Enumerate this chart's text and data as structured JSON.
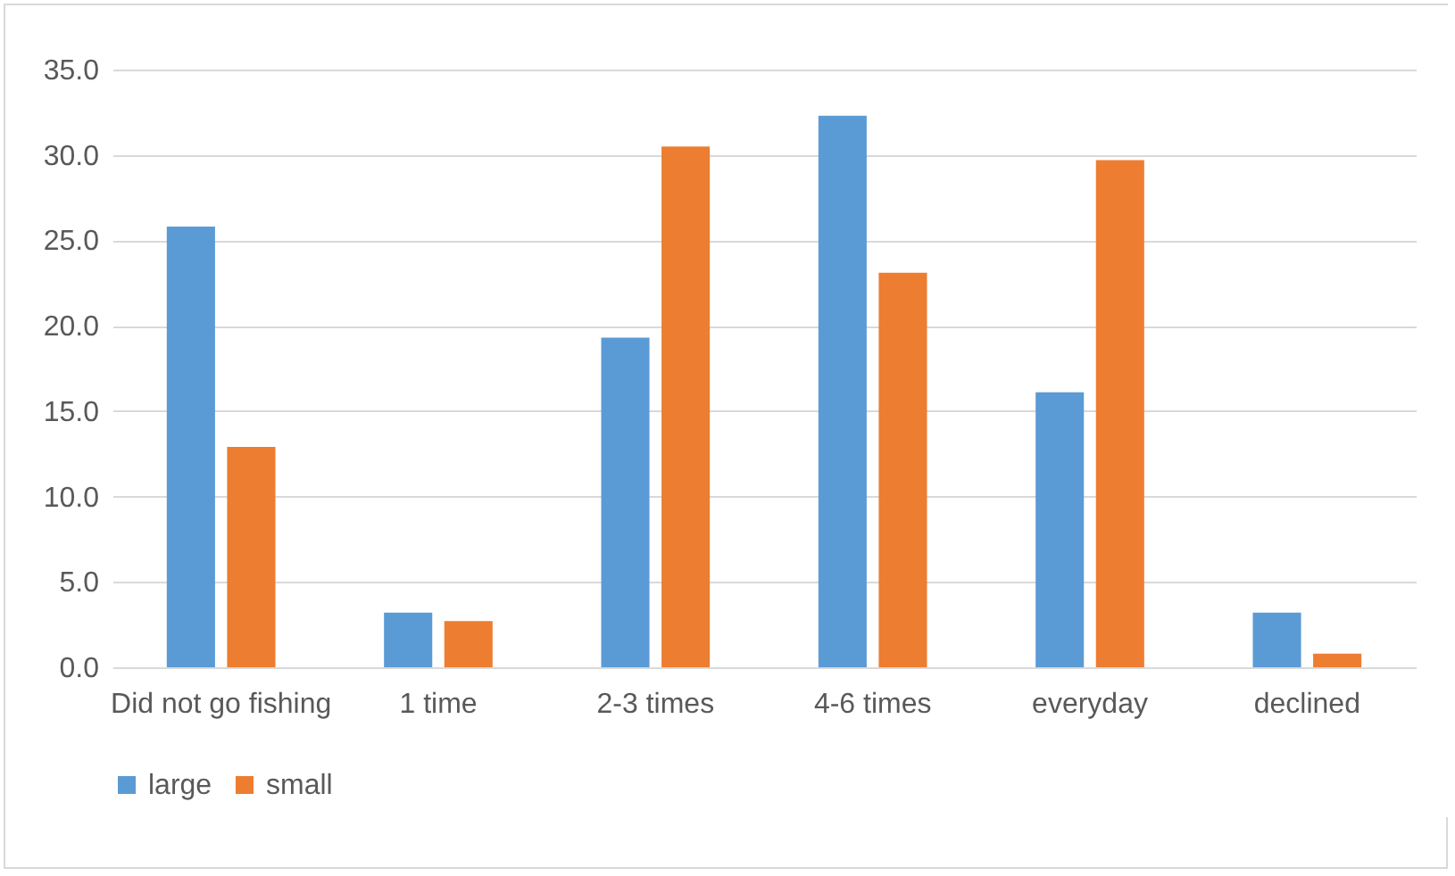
{
  "chart_data": {
    "type": "bar",
    "categories": [
      "Did not go fishing",
      "1 time",
      "2-3 times",
      "4-6 times",
      "everyday",
      "declined"
    ],
    "series": [
      {
        "name": "large",
        "color": "#5b9bd5",
        "values": [
          25.8,
          3.2,
          19.3,
          32.3,
          16.1,
          3.2
        ]
      },
      {
        "name": "small",
        "color": "#ed7d31",
        "values": [
          12.9,
          2.7,
          30.5,
          23.1,
          29.7,
          0.8
        ]
      }
    ],
    "ylim": [
      0,
      35
    ],
    "yticks": [
      {
        "value": 0,
        "label": "0.0"
      },
      {
        "value": 5,
        "label": "5.0"
      },
      {
        "value": 10,
        "label": "10.0"
      },
      {
        "value": 15,
        "label": "15.0"
      },
      {
        "value": 20,
        "label": "20.0"
      },
      {
        "value": 25,
        "label": "25.0"
      },
      {
        "value": 30,
        "label": "30.0"
      },
      {
        "value": 35,
        "label": "35.0"
      }
    ],
    "grid": "y",
    "legend": "bottom"
  }
}
